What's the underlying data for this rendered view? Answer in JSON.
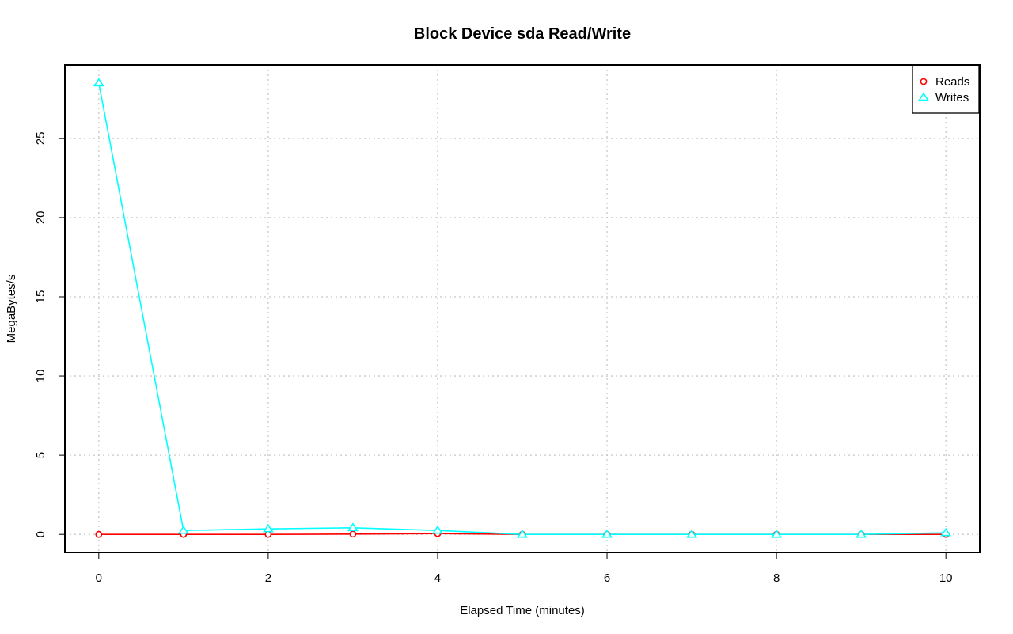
{
  "chart_data": {
    "type": "line",
    "title": "Block Device sda Read/Write",
    "xlabel": "Elapsed Time (minutes)",
    "ylabel": "MegaBytes/s",
    "x": [
      0,
      1,
      2,
      3,
      4,
      5,
      6,
      7,
      8,
      9,
      10
    ],
    "xlim": [
      -0.4,
      10.4
    ],
    "ylim": [
      -1.14,
      29.64
    ],
    "x_ticks": [
      0,
      2,
      4,
      6,
      8,
      10
    ],
    "y_ticks": [
      0,
      5,
      10,
      15,
      20,
      25
    ],
    "grid": true,
    "legend_position": "top-right",
    "series": [
      {
        "name": "Reads",
        "marker": "circle",
        "color": "#ff0000",
        "values": [
          0.0,
          0.0,
          0.0,
          0.02,
          0.05,
          0.0,
          0.0,
          0.0,
          0.0,
          0.0,
          0.0
        ]
      },
      {
        "name": "Writes",
        "marker": "triangle",
        "color": "#00ffff",
        "values": [
          28.5,
          0.25,
          0.35,
          0.42,
          0.25,
          0.0,
          0.0,
          0.0,
          0.0,
          0.0,
          0.1
        ]
      }
    ]
  }
}
